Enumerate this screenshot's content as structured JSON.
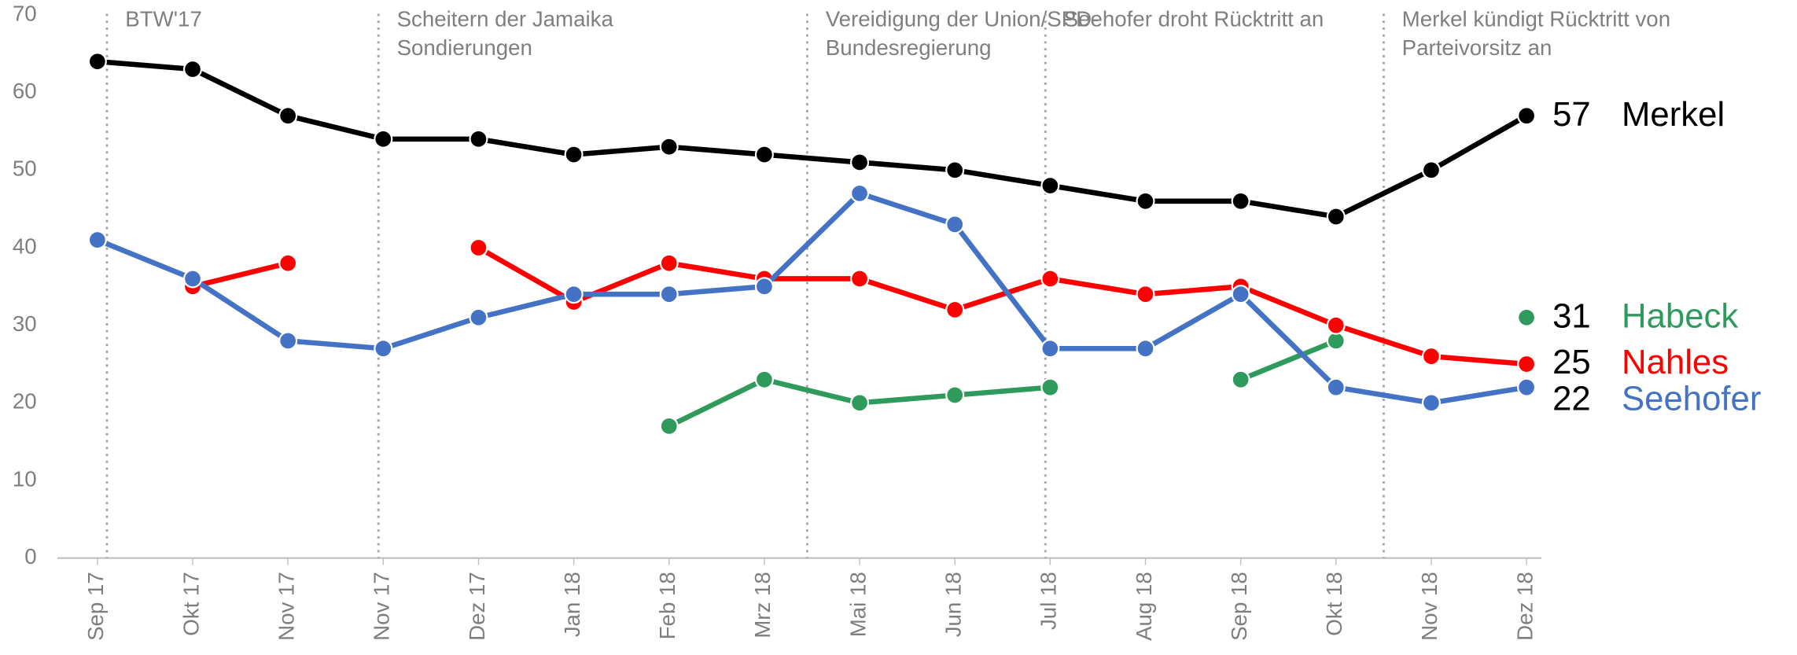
{
  "chart_data": {
    "type": "line",
    "categories": [
      "Sep 17",
      "Okt 17",
      "Nov 17",
      "Nov 17",
      "Dez 17",
      "Jan 18",
      "Feb 18",
      "Mrz 18",
      "Mai 18",
      "Jun 18",
      "Jul 18",
      "Aug 18",
      "Sep 18",
      "Okt 18",
      "Nov 18",
      "Dez 18"
    ],
    "series": [
      {
        "name": "Merkel",
        "color": "#000000",
        "values": [
          64,
          63,
          57,
          54,
          54,
          52,
          53,
          52,
          51,
          50,
          48,
          46,
          46,
          44,
          50,
          57
        ]
      },
      {
        "name": "Habeck",
        "color": "#2e9a5c",
        "values": [
          null,
          null,
          null,
          null,
          null,
          null,
          17,
          23,
          20,
          21,
          22,
          null,
          23,
          28,
          null,
          31
        ]
      },
      {
        "name": "Nahles",
        "color": "#ff0000",
        "values": [
          null,
          35,
          38,
          null,
          40,
          33,
          38,
          36,
          36,
          32,
          36,
          34,
          35,
          30,
          26,
          25
        ]
      },
      {
        "name": "Seehofer",
        "color": "#4472c4",
        "values": [
          41,
          36,
          28,
          27,
          31,
          34,
          34,
          35,
          47,
          43,
          27,
          27,
          34,
          22,
          20,
          22
        ]
      }
    ],
    "events": [
      [
        "BTW'17"
      ],
      [
        "Scheitern der Jamaika",
        "Sondierungen"
      ],
      [
        "Vereidigung der Union/SPD-",
        "Bundesregierung"
      ],
      [
        "Seehofer droht Rücktritt an"
      ],
      [
        "Merkel kündigt Rücktritt von",
        "Parteivorsitz an"
      ]
    ],
    "ylim": [
      0,
      70
    ],
    "yticks": [
      0,
      10,
      20,
      30,
      40,
      50,
      60,
      70
    ],
    "grid": false
  }
}
